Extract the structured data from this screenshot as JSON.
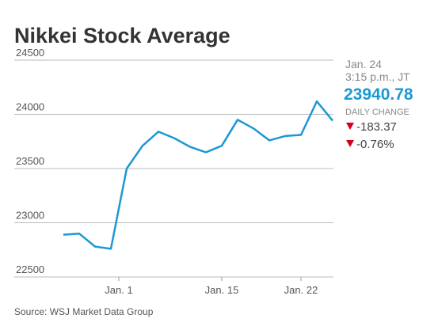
{
  "chart_data": {
    "type": "line",
    "title": "Nikkei Stock Average",
    "values": [
      22890,
      22900,
      22780,
      22760,
      23500,
      23710,
      23840,
      23780,
      23700,
      23650,
      23710,
      23950,
      23870,
      23760,
      23800,
      23810,
      24120,
      23940.78
    ],
    "color": "#1b98d5",
    "ylim": [
      22500,
      24500
    ],
    "yticks": [
      22500,
      23000,
      23500,
      24000,
      24500
    ],
    "xticks": [
      {
        "value": 3.5,
        "label": "Jan. 1"
      },
      {
        "value": 10,
        "label": "Jan. 15"
      },
      {
        "value": 15,
        "label": "Jan. 22"
      }
    ],
    "grid": true,
    "quote": {
      "date": "Jan. 24",
      "time": "3:15 p.m., JT",
      "last": "23940.78",
      "change_label": "DAILY CHANGE",
      "change": "-183.37",
      "change_pct": "-0.76%"
    },
    "source": "Source: WSJ Market Data Group"
  }
}
